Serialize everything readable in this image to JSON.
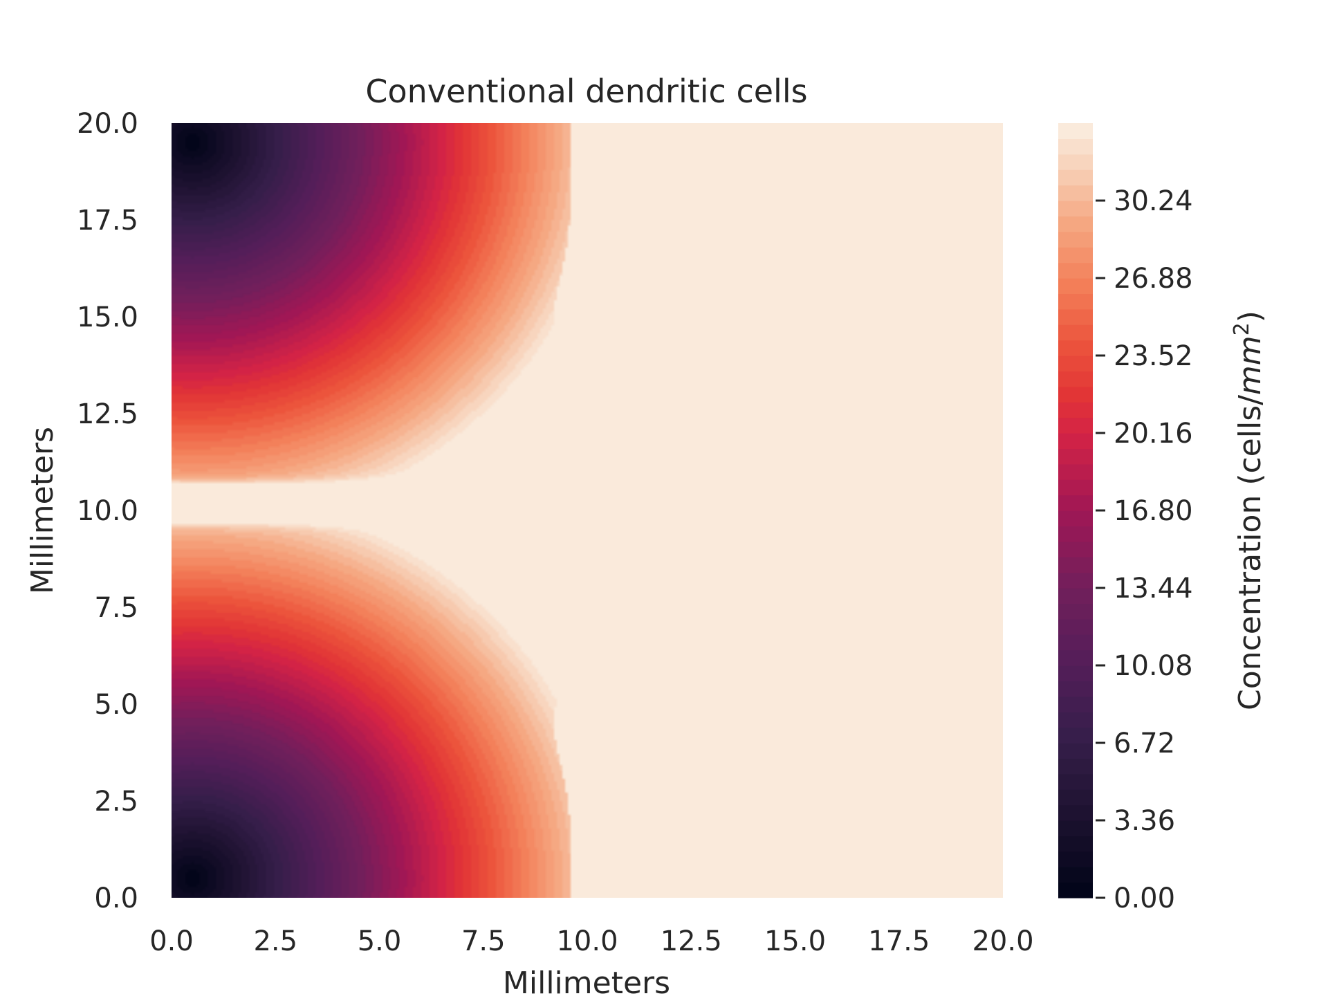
{
  "chart_data": {
    "type": "heatmap",
    "title": "Conventional dendritic cells",
    "xlabel": "Millimeters",
    "ylabel": "Millimeters",
    "xlim": [
      0,
      20
    ],
    "ylim": [
      0,
      20
    ],
    "x_ticks": [
      "0.0",
      "2.5",
      "5.0",
      "7.5",
      "10.0",
      "12.5",
      "15.0",
      "17.5",
      "20.0"
    ],
    "y_ticks": [
      "0.0",
      "2.5",
      "5.0",
      "7.5",
      "10.0",
      "12.5",
      "15.0",
      "17.5",
      "20.0"
    ],
    "colorbar": {
      "label_prefix": "Concentration (cells/",
      "label_unit": "mm",
      "label_exponent": "2",
      "label_suffix": ")",
      "range": [
        0,
        33.6
      ],
      "ticks": [
        "0.00",
        "3.36",
        "6.72",
        "10.08",
        "13.44",
        "16.80",
        "20.16",
        "23.52",
        "26.88",
        "30.24"
      ],
      "colormap": "rocket"
    },
    "field_description": {
      "min_value": 0,
      "max_value": 33.6,
      "low_regions_mm": [
        [
          0.5,
          0.5
        ],
        [
          0.5,
          19.5
        ]
      ],
      "high_band_y_mm": 10.2,
      "saturated_region_x_mm_from": 9.6
    }
  }
}
